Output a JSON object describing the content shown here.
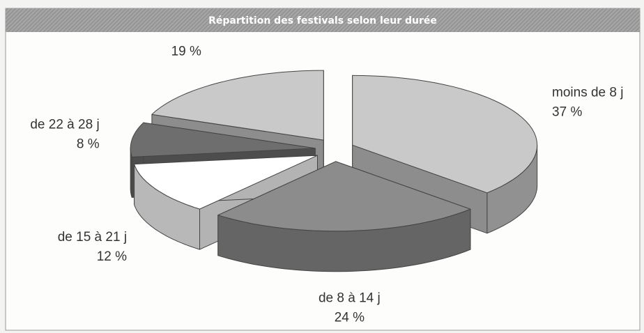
{
  "chart_data": {
    "type": "pie3d",
    "title": "Répartition des festivals selon leur durée",
    "categories": [
      "moins de 8 j",
      "de 8 à 14 j",
      "de 15 à 21 j",
      "de 22 à 28 j",
      null
    ],
    "values": [
      37,
      24,
      12,
      8,
      19
    ],
    "value_labels": [
      "37 %",
      "24 %",
      "12 %",
      "8 %",
      "19 %"
    ],
    "colors": [
      "#c9c9c9",
      "#8c8c8c",
      "#ffffff",
      "#6e6e6e",
      "#c9c9c9"
    ]
  }
}
